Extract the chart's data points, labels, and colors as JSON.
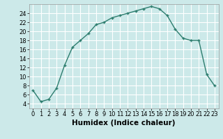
{
  "x": [
    0,
    1,
    2,
    3,
    4,
    5,
    6,
    7,
    8,
    9,
    10,
    11,
    12,
    13,
    14,
    15,
    16,
    17,
    18,
    19,
    20,
    21,
    22,
    23
  ],
  "y": [
    7,
    4.5,
    5,
    7.5,
    12.5,
    16.5,
    18,
    19.5,
    21.5,
    22,
    23,
    23.5,
    24,
    24.5,
    25,
    25.5,
    25,
    23.5,
    20.5,
    18.5,
    18,
    18,
    10.5,
    8
  ],
  "line_color": "#2d7d6e",
  "marker": "+",
  "marker_size": 3,
  "marker_linewidth": 1.0,
  "bg_color": "#cce9e9",
  "grid_color": "#ffffff",
  "xlabel": "Humidex (Indice chaleur)",
  "xlim": [
    -0.5,
    23.5
  ],
  "ylim": [
    3,
    26
  ],
  "yticks": [
    4,
    6,
    8,
    10,
    12,
    14,
    16,
    18,
    20,
    22,
    24
  ],
  "xticks": [
    0,
    1,
    2,
    3,
    4,
    5,
    6,
    7,
    8,
    9,
    10,
    11,
    12,
    13,
    14,
    15,
    16,
    17,
    18,
    19,
    20,
    21,
    22,
    23
  ],
  "tick_label_size": 6,
  "xlabel_size": 7.5,
  "linewidth": 1.0
}
